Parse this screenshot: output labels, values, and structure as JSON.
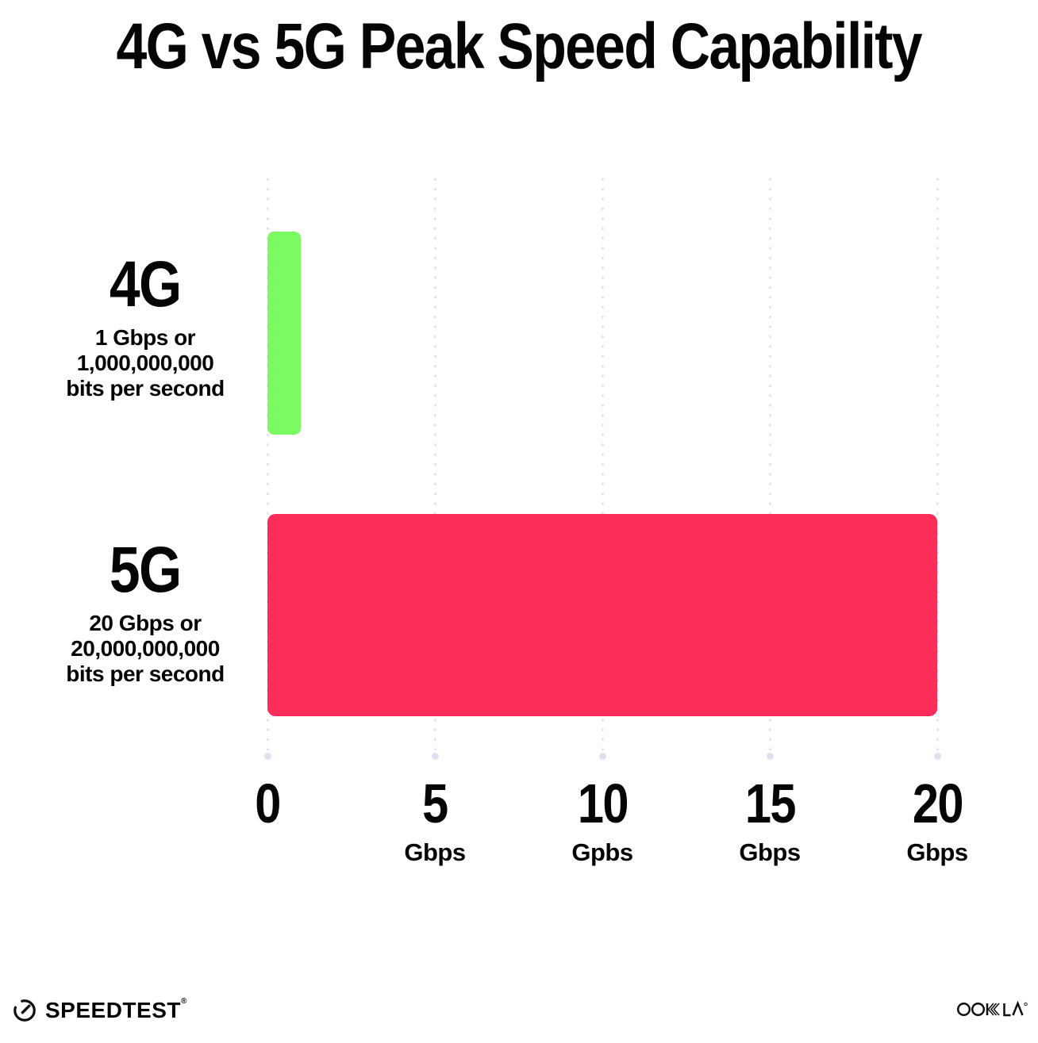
{
  "title": "4G vs 5G Peak Speed Capability",
  "colors": {
    "bar_4g_green": "#7CFA62",
    "bar_5g_pink": "#FC2D58",
    "gridline": "#DEE2EF",
    "text": "#050505",
    "background": "#FFFFFF"
  },
  "chart_data": {
    "type": "bar",
    "orientation": "horizontal",
    "title": "4G vs 5G Peak Speed Capability",
    "categories": [
      "4G",
      "5G"
    ],
    "values": [
      1,
      20
    ],
    "unit": "Gbps",
    "xlim": [
      0,
      20
    ],
    "grid": "dotted-vertical",
    "legend": "none",
    "bars": [
      {
        "label": "4G",
        "value_gbps": 1,
        "color": "#7CFA62",
        "annotation_lines": [
          "1 Gbps or",
          "1,000,000,000",
          "bits per second"
        ]
      },
      {
        "label": "5G",
        "value_gbps": 20,
        "color": "#FC2D58",
        "annotation_lines": [
          "20 Gbps or",
          "20,000,000,000",
          "bits per second"
        ]
      }
    ],
    "x_ticks": [
      {
        "value": 0,
        "label": "0",
        "unit": ""
      },
      {
        "value": 5,
        "label": "5",
        "unit": "Gbps"
      },
      {
        "value": 10,
        "label": "10",
        "unit": "Gpbs"
      },
      {
        "value": 15,
        "label": "15",
        "unit": "Gbps"
      },
      {
        "value": 20,
        "label": "20",
        "unit": "Gbps"
      }
    ]
  },
  "footer": {
    "speedtest_label": "SPEEDTEST",
    "speedtest_trademark": "®",
    "speedtest_icon": "gauge-icon",
    "ookla_label": "OOKLA",
    "ookla_icon": "ookla-wordmark"
  }
}
